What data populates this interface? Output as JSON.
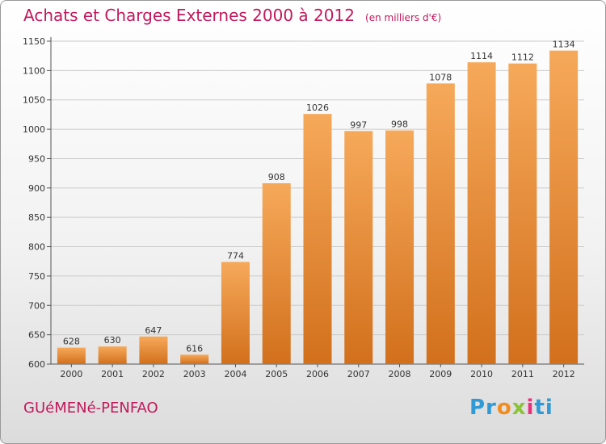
{
  "header": {
    "title": "Achats et Charges Externes 2000 à 2012",
    "unit": "(en milliers d'€)"
  },
  "footer": {
    "commune": "GUéMENé-PENFAO",
    "logo": [
      "Pr",
      "o",
      "x",
      "i",
      "ti"
    ]
  },
  "colors": {
    "accent": "#c2185b",
    "bar_light": "#f6a95a",
    "bar_dark": "#d2701c",
    "grid": "#cccccc"
  },
  "chart_data": {
    "type": "bar",
    "title": "Achats et Charges Externes 2000 à 2012",
    "subtitle": "(en milliers d'€)",
    "xlabel": "",
    "ylabel": "",
    "categories": [
      "2000",
      "2001",
      "2002",
      "2003",
      "2004",
      "2005",
      "2006",
      "2007",
      "2008",
      "2009",
      "2010",
      "2011",
      "2012"
    ],
    "values": [
      628,
      630,
      647,
      616,
      774,
      908,
      1026,
      997,
      998,
      1078,
      1114,
      1112,
      1134
    ],
    "ylim": [
      600,
      1150
    ],
    "yticks": [
      600,
      650,
      700,
      750,
      800,
      850,
      900,
      950,
      1000,
      1050,
      1100,
      1150
    ],
    "grid": true,
    "data_labels": true
  }
}
